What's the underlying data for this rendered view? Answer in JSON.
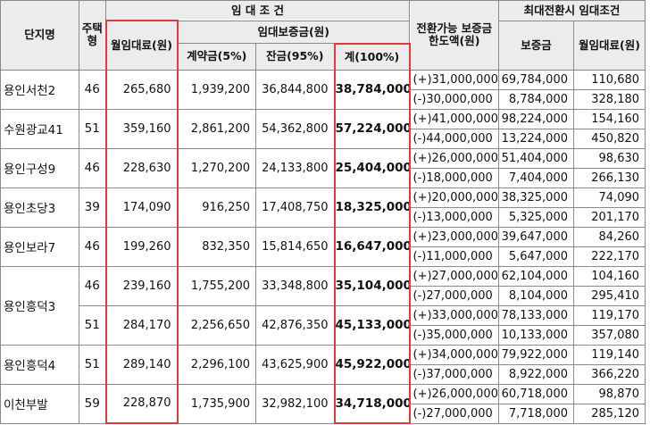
{
  "headers": {
    "complex": "단지명",
    "unit_type": "주택형",
    "rental_conditions": "임 대 조 건",
    "monthly_rent": "월임대료(원)",
    "deposit_group": "임대보증금(원)",
    "contract_deposit": "계약금(5%)",
    "balance": "잔금(95%)",
    "total": "계(100%)",
    "conversion_limit": "전환가능 보증금 한도액(원)",
    "max_conversion": "최대전환시 임대조건",
    "max_deposit": "보증금",
    "max_monthly_rent": "월임대료(원)"
  },
  "rows": [
    {
      "complex": "용인서천2",
      "type": "46",
      "rent": "265,680",
      "contract": "1,939,200",
      "balance": "36,844,800",
      "total": "38,784,000",
      "conv": [
        {
          "range": "(+)31,000,000",
          "deposit": "69,784,000",
          "rent": "110,680"
        },
        {
          "range": "(-)30,000,000",
          "deposit": "8,784,000",
          "rent": "328,180"
        }
      ]
    },
    {
      "complex": "수원광교41",
      "type": "51",
      "rent": "359,160",
      "contract": "2,861,200",
      "balance": "54,362,800",
      "total": "57,224,000",
      "conv": [
        {
          "range": "(+)41,000,000",
          "deposit": "98,224,000",
          "rent": "154,160"
        },
        {
          "range": "(-)44,000,000",
          "deposit": "13,224,000",
          "rent": "450,820"
        }
      ]
    },
    {
      "complex": "용인구성9",
      "type": "46",
      "rent": "228,630",
      "contract": "1,270,200",
      "balance": "24,133,800",
      "total": "25,404,000",
      "conv": [
        {
          "range": "(+)26,000,000",
          "deposit": "51,404,000",
          "rent": "98,630"
        },
        {
          "range": "(-)18,000,000",
          "deposit": "7,404,000",
          "rent": "266,130"
        }
      ]
    },
    {
      "complex": "용인초당3",
      "type": "39",
      "rent": "174,090",
      "contract": "916,250",
      "balance": "17,408,750",
      "total": "18,325,000",
      "conv": [
        {
          "range": "(+)20,000,000",
          "deposit": "38,325,000",
          "rent": "74,090"
        },
        {
          "range": "(-)13,000,000",
          "deposit": "5,325,000",
          "rent": "201,170"
        }
      ]
    },
    {
      "complex": "용인보라7",
      "type": "46",
      "rent": "199,260",
      "contract": "832,350",
      "balance": "15,814,650",
      "total": "16,647,000",
      "conv": [
        {
          "range": "(+)23,000,000",
          "deposit": "39,647,000",
          "rent": "84,260"
        },
        {
          "range": "(-)11,000,000",
          "deposit": "5,647,000",
          "rent": "222,170"
        }
      ]
    },
    {
      "complex": "용인흥덕3",
      "type": "46",
      "rent": "239,160",
      "contract": "1,755,200",
      "balance": "33,348,800",
      "total": "35,104,000",
      "conv": [
        {
          "range": "(+)27,000,000",
          "deposit": "62,104,000",
          "rent": "104,160"
        },
        {
          "range": "(-)27,000,000",
          "deposit": "8,104,000",
          "rent": "295,410"
        }
      ]
    },
    {
      "complex": "",
      "type": "51",
      "rent": "284,170",
      "contract": "2,256,650",
      "balance": "42,876,350",
      "total": "45,133,000",
      "conv": [
        {
          "range": "(+)33,000,000",
          "deposit": "78,133,000",
          "rent": "119,170"
        },
        {
          "range": "(-)35,000,000",
          "deposit": "10,133,000",
          "rent": "357,080"
        }
      ]
    },
    {
      "complex": "용인흥덕4",
      "type": "51",
      "rent": "289,140",
      "contract": "2,296,100",
      "balance": "43,625,900",
      "total": "45,922,000",
      "conv": [
        {
          "range": "(+)34,000,000",
          "deposit": "79,922,000",
          "rent": "119,140"
        },
        {
          "range": "(-)37,000,000",
          "deposit": "8,922,000",
          "rent": "366,220"
        }
      ]
    },
    {
      "complex": "이천부발",
      "type": "59",
      "rent": "228,870",
      "contract": "1,735,900",
      "balance": "32,982,100",
      "total": "34,718,000",
      "conv": [
        {
          "range": "(+)26,000,000",
          "deposit": "60,718,000",
          "rent": "98,870"
        },
        {
          "range": "(-)27,000,000",
          "deposit": "7,718,000",
          "rent": "285,120"
        }
      ]
    }
  ]
}
